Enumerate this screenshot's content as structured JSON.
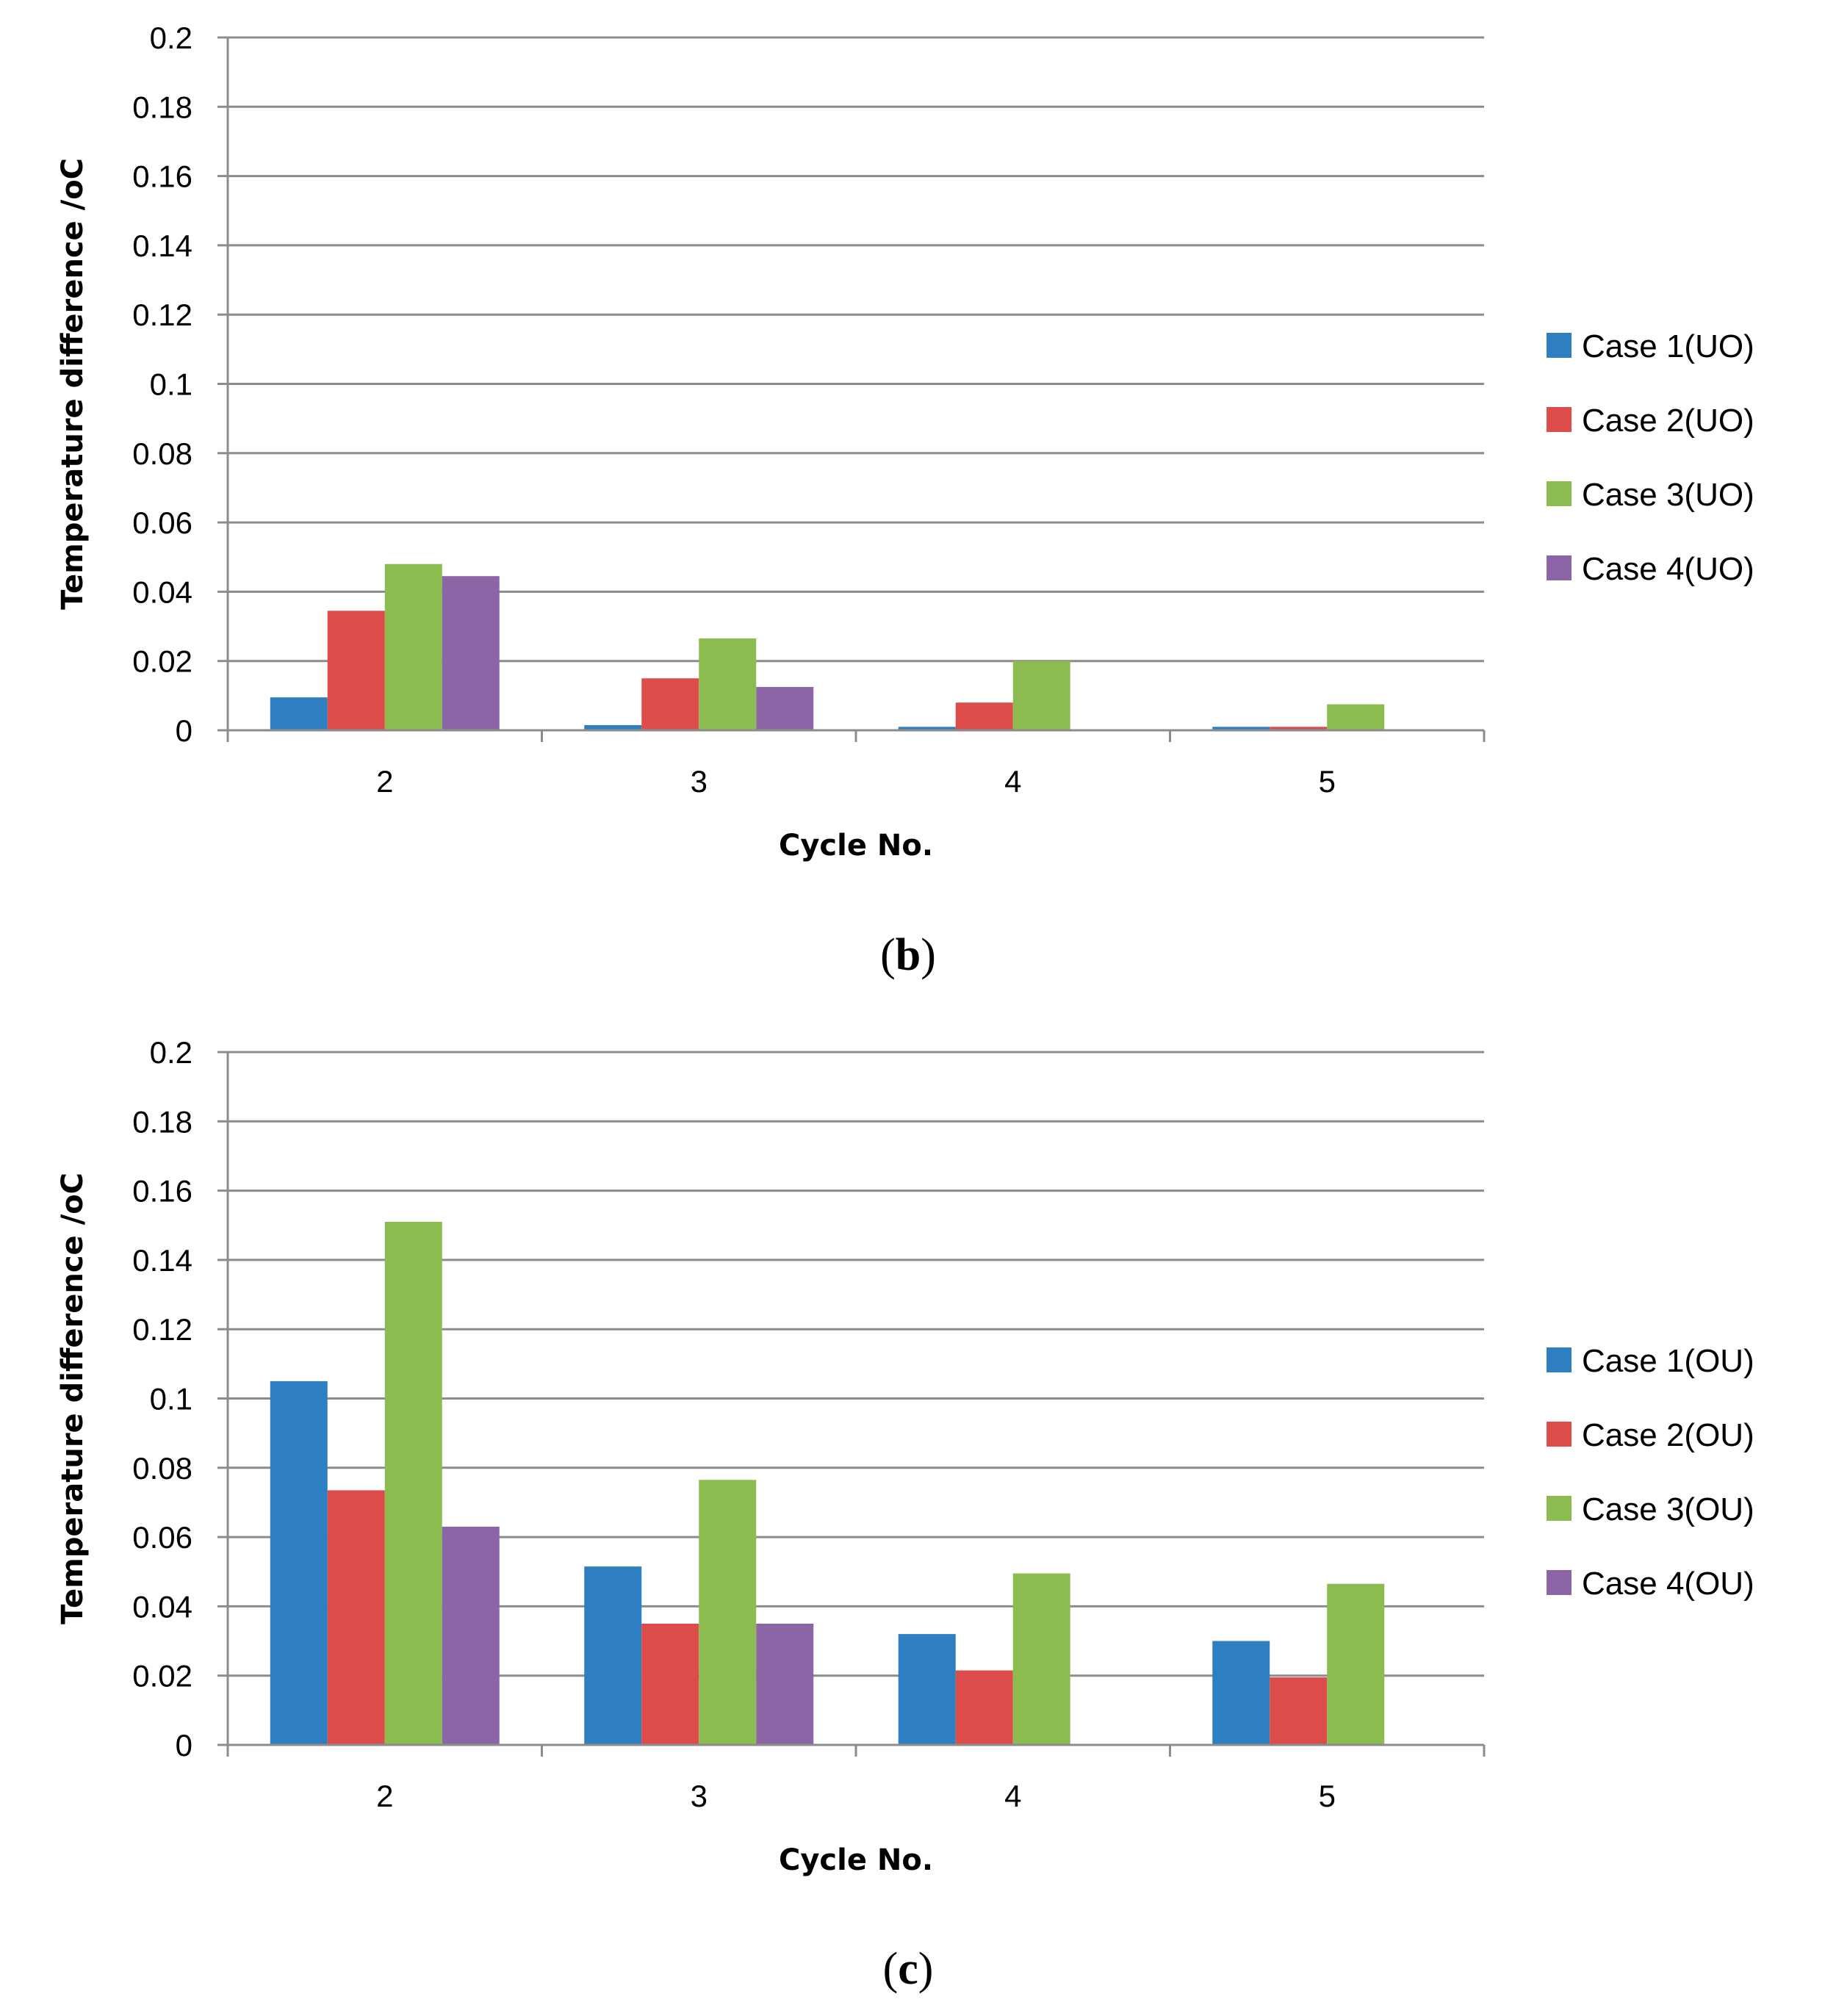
{
  "chart_data": [
    {
      "type": "bar",
      "panel_label": "b",
      "title": "",
      "xlabel": "Cycle No.",
      "ylabel": "Temperature difference /oC",
      "ylim": [
        0,
        0.2
      ],
      "yticks": [
        "0",
        "0.02",
        "0.04",
        "0.06",
        "0.08",
        "0.1",
        "0.12",
        "0.14",
        "0.16",
        "0.18",
        "0.2"
      ],
      "grid": true,
      "legend_position": "right",
      "categories": [
        "2",
        "3",
        "4",
        "5"
      ],
      "series": [
        {
          "name": "Case 1(UO)",
          "color": "#2e7fc1",
          "values": [
            0.0095,
            0.0015,
            0.001,
            0.001
          ]
        },
        {
          "name": "Case 2(UO)",
          "color": "#db4c4a",
          "values": [
            0.0345,
            0.015,
            0.008,
            0.001
          ]
        },
        {
          "name": "Case 3(UO)",
          "color": "#8cbb4f",
          "values": [
            0.048,
            0.0265,
            0.02,
            0.0075
          ]
        },
        {
          "name": "Case 4(UO)",
          "color": "#8b65a6",
          "values": [
            0.0445,
            0.0125,
            0,
            0
          ]
        }
      ]
    },
    {
      "type": "bar",
      "panel_label": "c",
      "title": "",
      "xlabel": "Cycle No.",
      "ylabel": "Temperature difference /oC",
      "ylim": [
        0,
        0.2
      ],
      "yticks": [
        "0",
        "0.02",
        "0.04",
        "0.06",
        "0.08",
        "0.1",
        "0.12",
        "0.14",
        "0.16",
        "0.18",
        "0.2"
      ],
      "grid": true,
      "legend_position": "right",
      "categories": [
        "2",
        "3",
        "4",
        "5"
      ],
      "series": [
        {
          "name": "Case 1(OU)",
          "color": "#2e7fc1",
          "values": [
            0.105,
            0.0515,
            0.032,
            0.03
          ]
        },
        {
          "name": "Case 2(OU)",
          "color": "#db4c4a",
          "values": [
            0.0735,
            0.035,
            0.0215,
            0.0195
          ]
        },
        {
          "name": "Case 3(OU)",
          "color": "#8cbb4f",
          "values": [
            0.151,
            0.0765,
            0.0495,
            0.0465
          ]
        },
        {
          "name": "Case 4(OU)",
          "color": "#8b65a6",
          "values": [
            0.063,
            0.035,
            0,
            0
          ]
        }
      ]
    }
  ]
}
